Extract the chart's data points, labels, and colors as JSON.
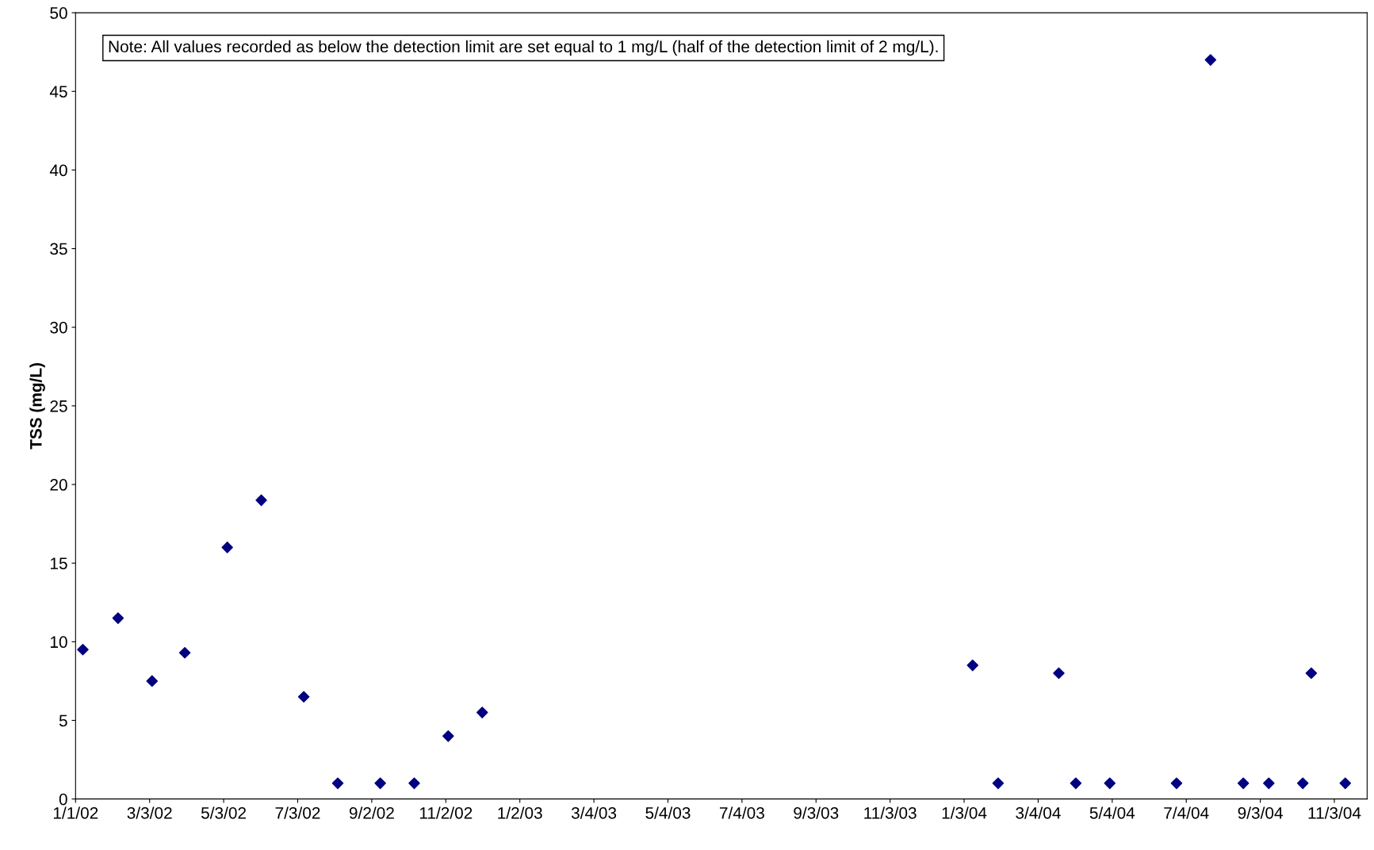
{
  "chart_data": {
    "type": "scatter",
    "ylabel": "TSS (mg/L)",
    "annotations": [
      "Note: All values recorded as below the detection limit are set equal to 1 mg/L (half of the detection limit of 2 mg/L)."
    ],
    "x": [
      "2002-01-07",
      "2002-02-05",
      "2002-03-05",
      "2002-04-01",
      "2002-05-06",
      "2002-06-03",
      "2002-07-08",
      "2002-08-05",
      "2002-09-09",
      "2002-10-07",
      "2002-11-04",
      "2002-12-02",
      "2004-01-10",
      "2004-01-31",
      "2004-03-21",
      "2004-04-04",
      "2004-05-02",
      "2004-06-26",
      "2004-07-24",
      "2004-08-20",
      "2004-09-10",
      "2004-10-08",
      "2004-10-15",
      "2004-11-12"
    ],
    "series": [
      {
        "color": "#000080",
        "values": [
          9.5,
          11.5,
          7.5,
          9.3,
          16,
          19,
          6.5,
          1,
          1,
          1,
          4,
          5.5,
          8.5,
          1,
          8,
          1,
          1,
          1,
          47,
          1,
          1,
          1,
          8,
          1
        ]
      }
    ],
    "marker": "diamond",
    "grid": false,
    "legend": false,
    "ylim": [
      0,
      50
    ],
    "yticks": [
      0,
      5,
      10,
      15,
      20,
      25,
      30,
      35,
      40,
      45,
      50
    ],
    "xlim": [
      "2002-01-01",
      "2004-11-30"
    ],
    "xticks": [
      {
        "value": "2002-01-01",
        "label": "1/1/02"
      },
      {
        "value": "2002-03-03",
        "label": "3/3/02"
      },
      {
        "value": "2002-05-03",
        "label": "5/3/02"
      },
      {
        "value": "2002-07-03",
        "label": "7/3/02"
      },
      {
        "value": "2002-09-02",
        "label": "9/2/02"
      },
      {
        "value": "2002-11-02",
        "label": "11/2/02"
      },
      {
        "value": "2003-01-02",
        "label": "1/2/03"
      },
      {
        "value": "2003-03-04",
        "label": "3/4/03"
      },
      {
        "value": "2003-05-04",
        "label": "5/4/03"
      },
      {
        "value": "2003-07-04",
        "label": "7/4/03"
      },
      {
        "value": "2003-09-03",
        "label": "9/3/03"
      },
      {
        "value": "2003-11-03",
        "label": "11/3/03"
      },
      {
        "value": "2004-01-03",
        "label": "1/3/04"
      },
      {
        "value": "2004-03-04",
        "label": "3/4/04"
      },
      {
        "value": "2004-05-04",
        "label": "5/4/04"
      },
      {
        "value": "2004-07-04",
        "label": "7/4/04"
      },
      {
        "value": "2004-09-03",
        "label": "9/3/04"
      },
      {
        "value": "2004-11-03",
        "label": "11/3/04"
      }
    ]
  }
}
